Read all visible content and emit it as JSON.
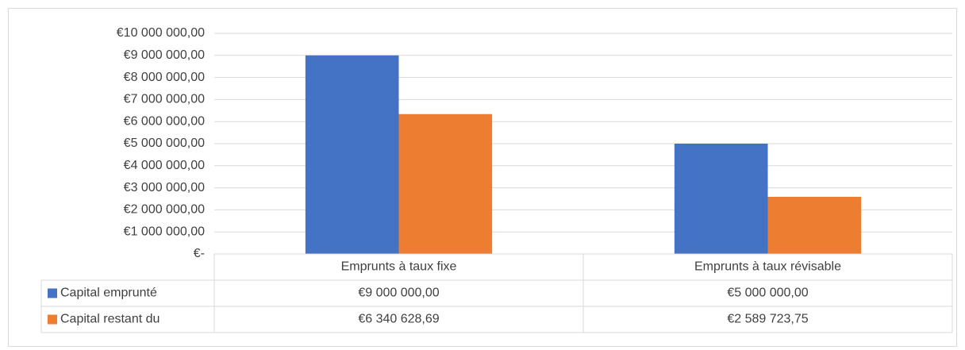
{
  "chart_data": {
    "type": "bar",
    "categories": [
      "Emprunts à taux fixe",
      "Emprunts à taux révisable"
    ],
    "series": [
      {
        "name": "Capital emprunté",
        "color": "#4472c4",
        "values": [
          9000000,
          5000000
        ],
        "value_labels": [
          "€9 000 000,00",
          "€5 000 000,00"
        ]
      },
      {
        "name": "Capital restant du",
        "color": "#ed7d31",
        "values": [
          6340628.69,
          2589723.75
        ],
        "value_labels": [
          "€6 340 628,69",
          "€2 589 723,75"
        ]
      }
    ],
    "ylim": [
      0,
      10000000
    ],
    "yticks": [
      {
        "value": 0,
        "label": "€-"
      },
      {
        "value": 1000000,
        "label": "€1 000 000,00"
      },
      {
        "value": 2000000,
        "label": "€2 000 000,00"
      },
      {
        "value": 3000000,
        "label": "€3 000 000,00"
      },
      {
        "value": 4000000,
        "label": "€4 000 000,00"
      },
      {
        "value": 5000000,
        "label": "€5 000 000,00"
      },
      {
        "value": 6000000,
        "label": "€6 000 000,00"
      },
      {
        "value": 7000000,
        "label": "€7 000 000,00"
      },
      {
        "value": 8000000,
        "label": "€8 000 000,00"
      },
      {
        "value": 9000000,
        "label": "€9 000 000,00"
      },
      {
        "value": 10000000,
        "label": "€10 000 000,00"
      }
    ],
    "grid": true,
    "legend": "data-table"
  }
}
